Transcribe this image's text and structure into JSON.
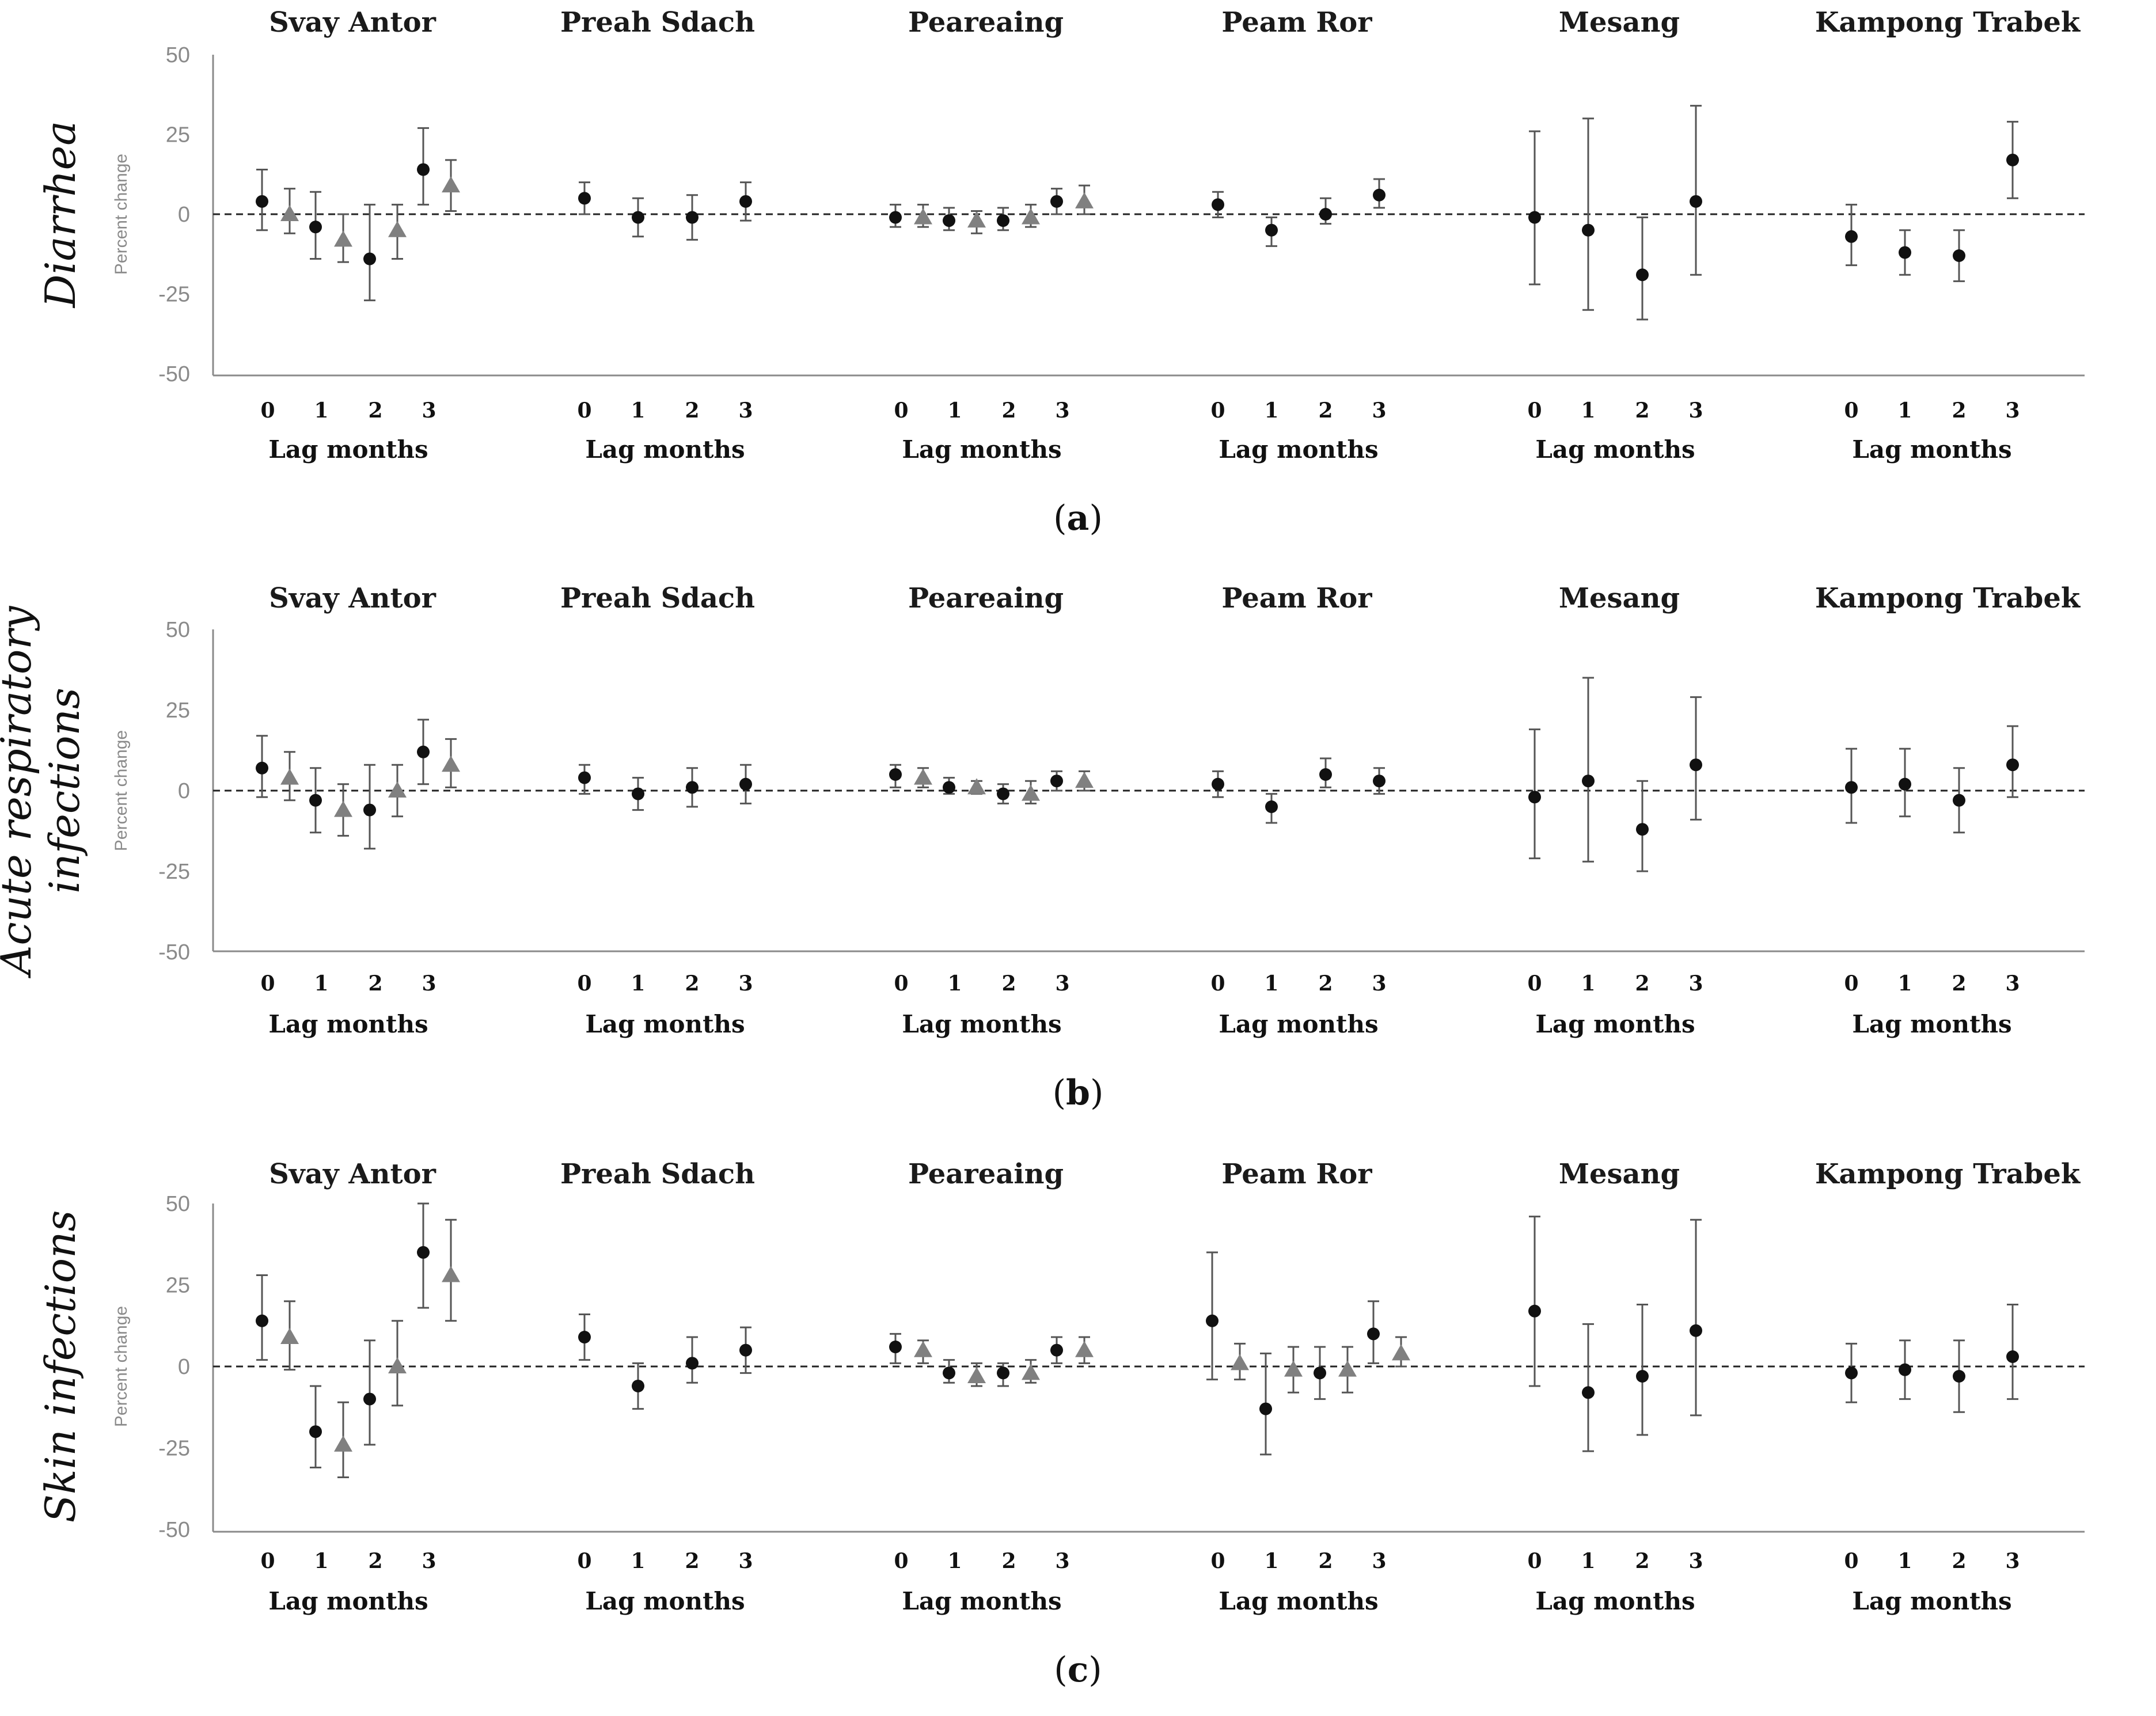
{
  "chart_data": [
    {
      "type": "scatter",
      "panel_label": "a",
      "ylabel": "Diarrhea",
      "ylabel_small": "Percent change",
      "ylim": [
        -50,
        50
      ],
      "yticks": [
        50,
        25,
        0,
        -25,
        -50
      ],
      "xlabel": "Lag months",
      "lags": [
        "0",
        "1",
        "2",
        "3"
      ],
      "sites": [
        {
          "name": "Svay Antor",
          "circle": [
            {
              "lag": 0,
              "v": 4,
              "lo": -5,
              "hi": 14
            },
            {
              "lag": 1,
              "v": -4,
              "lo": -14,
              "hi": 7
            },
            {
              "lag": 2,
              "v": -14,
              "lo": -27,
              "hi": 3
            },
            {
              "lag": 3,
              "v": 14,
              "lo": 3,
              "hi": 27
            }
          ],
          "triangle": [
            {
              "lag": 0,
              "v": 0,
              "lo": -6,
              "hi": 8
            },
            {
              "lag": 1,
              "v": -8,
              "lo": -15,
              "hi": 0
            },
            {
              "lag": 2,
              "v": -5,
              "lo": -14,
              "hi": 3
            },
            {
              "lag": 3,
              "v": 9,
              "lo": 1,
              "hi": 17
            }
          ]
        },
        {
          "name": "Preah Sdach",
          "circle": [
            {
              "lag": 0,
              "v": 5,
              "lo": 0,
              "hi": 10
            },
            {
              "lag": 1,
              "v": -1,
              "lo": -7,
              "hi": 5
            },
            {
              "lag": 2,
              "v": -1,
              "lo": -8,
              "hi": 6
            },
            {
              "lag": 3,
              "v": 4,
              "lo": -2,
              "hi": 10
            }
          ],
          "triangle": []
        },
        {
          "name": "Peareaing",
          "circle": [
            {
              "lag": 0,
              "v": -1,
              "lo": -4,
              "hi": 3
            },
            {
              "lag": 1,
              "v": -2,
              "lo": -5,
              "hi": 2
            },
            {
              "lag": 2,
              "v": -2,
              "lo": -5,
              "hi": 2
            },
            {
              "lag": 3,
              "v": 4,
              "lo": 0,
              "hi": 8
            }
          ],
          "triangle": [
            {
              "lag": 0,
              "v": -1,
              "lo": -4,
              "hi": 3
            },
            {
              "lag": 1,
              "v": -2,
              "lo": -6,
              "hi": 1
            },
            {
              "lag": 2,
              "v": -1,
              "lo": -4,
              "hi": 3
            },
            {
              "lag": 3,
              "v": 4,
              "lo": 0,
              "hi": 9
            }
          ]
        },
        {
          "name": "Peam Ror",
          "circle": [
            {
              "lag": 0,
              "v": 3,
              "lo": -1,
              "hi": 7
            },
            {
              "lag": 1,
              "v": -5,
              "lo": -10,
              "hi": -1
            },
            {
              "lag": 2,
              "v": 0,
              "lo": -3,
              "hi": 5
            },
            {
              "lag": 3,
              "v": 6,
              "lo": 2,
              "hi": 11
            }
          ],
          "triangle": []
        },
        {
          "name": "Mesang",
          "circle": [
            {
              "lag": 0,
              "v": -1,
              "lo": -22,
              "hi": 26
            },
            {
              "lag": 1,
              "v": -5,
              "lo": -30,
              "hi": 30
            },
            {
              "lag": 2,
              "v": -19,
              "lo": -33,
              "hi": -1
            },
            {
              "lag": 3,
              "v": 4,
              "lo": -19,
              "hi": 34
            }
          ],
          "triangle": []
        },
        {
          "name": "Kampong Trabek",
          "circle": [
            {
              "lag": 0,
              "v": -7,
              "lo": -16,
              "hi": 3
            },
            {
              "lag": 1,
              "v": -12,
              "lo": -19,
              "hi": -5
            },
            {
              "lag": 2,
              "v": -13,
              "lo": -21,
              "hi": -5
            },
            {
              "lag": 3,
              "v": 17,
              "lo": 5,
              "hi": 29
            }
          ],
          "triangle": []
        }
      ]
    },
    {
      "type": "scatter",
      "panel_label": "b",
      "ylabel": "Acute respiratory infections",
      "ylabel_lines": [
        "Acute respiratory",
        "infections"
      ],
      "ylabel_small": "Percent change",
      "ylim": [
        -50,
        50
      ],
      "yticks": [
        50,
        25,
        0,
        -25,
        -50
      ],
      "xlabel": "Lag months",
      "lags": [
        "0",
        "1",
        "2",
        "3"
      ],
      "sites": [
        {
          "name": "Svay Antor",
          "circle": [
            {
              "lag": 0,
              "v": 7,
              "lo": -2,
              "hi": 17
            },
            {
              "lag": 1,
              "v": -3,
              "lo": -13,
              "hi": 7
            },
            {
              "lag": 2,
              "v": -6,
              "lo": -18,
              "hi": 8
            },
            {
              "lag": 3,
              "v": 12,
              "lo": 2,
              "hi": 22
            }
          ],
          "triangle": [
            {
              "lag": 0,
              "v": 4,
              "lo": -3,
              "hi": 12
            },
            {
              "lag": 1,
              "v": -6,
              "lo": -14,
              "hi": 2
            },
            {
              "lag": 2,
              "v": 0,
              "lo": -8,
              "hi": 8
            },
            {
              "lag": 3,
              "v": 8,
              "lo": 1,
              "hi": 16
            }
          ]
        },
        {
          "name": "Preah Sdach",
          "circle": [
            {
              "lag": 0,
              "v": 4,
              "lo": -1,
              "hi": 8
            },
            {
              "lag": 1,
              "v": -1,
              "lo": -6,
              "hi": 4
            },
            {
              "lag": 2,
              "v": 1,
              "lo": -5,
              "hi": 7
            },
            {
              "lag": 3,
              "v": 2,
              "lo": -4,
              "hi": 8
            }
          ],
          "triangle": []
        },
        {
          "name": "Peareaing",
          "circle": [
            {
              "lag": 0,
              "v": 5,
              "lo": 1,
              "hi": 8
            },
            {
              "lag": 1,
              "v": 1,
              "lo": -1,
              "hi": 4
            },
            {
              "lag": 2,
              "v": -1,
              "lo": -4,
              "hi": 2
            },
            {
              "lag": 3,
              "v": 3,
              "lo": 0,
              "hi": 6
            }
          ],
          "triangle": [
            {
              "lag": 0,
              "v": 4,
              "lo": 1,
              "hi": 7
            },
            {
              "lag": 1,
              "v": 1,
              "lo": -1,
              "hi": 3
            },
            {
              "lag": 2,
              "v": -1,
              "lo": -4,
              "hi": 3
            },
            {
              "lag": 3,
              "v": 3,
              "lo": 0,
              "hi": 6
            }
          ]
        },
        {
          "name": "Peam Ror",
          "circle": [
            {
              "lag": 0,
              "v": 2,
              "lo": -2,
              "hi": 6
            },
            {
              "lag": 1,
              "v": -5,
              "lo": -10,
              "hi": -1
            },
            {
              "lag": 2,
              "v": 5,
              "lo": 1,
              "hi": 10
            },
            {
              "lag": 3,
              "v": 3,
              "lo": -1,
              "hi": 7
            }
          ],
          "triangle": []
        },
        {
          "name": "Mesang",
          "circle": [
            {
              "lag": 0,
              "v": -2,
              "lo": -21,
              "hi": 19
            },
            {
              "lag": 1,
              "v": 3,
              "lo": -22,
              "hi": 35
            },
            {
              "lag": 2,
              "v": -12,
              "lo": -25,
              "hi": 3
            },
            {
              "lag": 3,
              "v": 8,
              "lo": -9,
              "hi": 29
            }
          ],
          "triangle": []
        },
        {
          "name": "Kampong Trabek",
          "circle": [
            {
              "lag": 0,
              "v": 1,
              "lo": -10,
              "hi": 13
            },
            {
              "lag": 1,
              "v": 2,
              "lo": -8,
              "hi": 13
            },
            {
              "lag": 2,
              "v": -3,
              "lo": -13,
              "hi": 7
            },
            {
              "lag": 3,
              "v": 8,
              "lo": -2,
              "hi": 20
            }
          ],
          "triangle": []
        }
      ]
    },
    {
      "type": "scatter",
      "panel_label": "c",
      "ylabel": "Skin infections",
      "ylabel_small": "Percent change",
      "ylim": [
        -50,
        50
      ],
      "yticks": [
        50,
        25,
        0,
        -25,
        -50
      ],
      "xlabel": "Lag months",
      "lags": [
        "0",
        "1",
        "2",
        "3"
      ],
      "sites": [
        {
          "name": "Svay Antor",
          "circle": [
            {
              "lag": 0,
              "v": 14,
              "lo": 2,
              "hi": 28
            },
            {
              "lag": 1,
              "v": -20,
              "lo": -31,
              "hi": -6
            },
            {
              "lag": 2,
              "v": -10,
              "lo": -24,
              "hi": 8
            },
            {
              "lag": 3,
              "v": 35,
              "lo": 18,
              "hi": 50
            }
          ],
          "triangle": [
            {
              "lag": 0,
              "v": 9,
              "lo": -1,
              "hi": 20
            },
            {
              "lag": 1,
              "v": -24,
              "lo": -34,
              "hi": -11
            },
            {
              "lag": 2,
              "v": 0,
              "lo": -12,
              "hi": 14
            },
            {
              "lag": 3,
              "v": 28,
              "lo": 14,
              "hi": 45
            }
          ]
        },
        {
          "name": "Preah Sdach",
          "circle": [
            {
              "lag": 0,
              "v": 9,
              "lo": 2,
              "hi": 16
            },
            {
              "lag": 1,
              "v": -6,
              "lo": -13,
              "hi": 1
            },
            {
              "lag": 2,
              "v": 1,
              "lo": -5,
              "hi": 9
            },
            {
              "lag": 3,
              "v": 5,
              "lo": -2,
              "hi": 12
            }
          ],
          "triangle": []
        },
        {
          "name": "Peareaing",
          "circle": [
            {
              "lag": 0,
              "v": 6,
              "lo": 1,
              "hi": 10
            },
            {
              "lag": 1,
              "v": -2,
              "lo": -5,
              "hi": 2
            },
            {
              "lag": 2,
              "v": -2,
              "lo": -6,
              "hi": 1
            },
            {
              "lag": 3,
              "v": 5,
              "lo": 1,
              "hi": 9
            }
          ],
          "triangle": [
            {
              "lag": 0,
              "v": 5,
              "lo": 1,
              "hi": 8
            },
            {
              "lag": 1,
              "v": -3,
              "lo": -6,
              "hi": 1
            },
            {
              "lag": 2,
              "v": -2,
              "lo": -5,
              "hi": 2
            },
            {
              "lag": 3,
              "v": 5,
              "lo": 1,
              "hi": 9
            }
          ]
        },
        {
          "name": "Peam Ror",
          "circle": [
            {
              "lag": 0,
              "v": 14,
              "lo": -4,
              "hi": 35
            },
            {
              "lag": 1,
              "v": -13,
              "lo": -27,
              "hi": 4
            },
            {
              "lag": 2,
              "v": -2,
              "lo": -10,
              "hi": 6
            },
            {
              "lag": 3,
              "v": 10,
              "lo": 1,
              "hi": 20
            }
          ],
          "triangle": [
            {
              "lag": 0,
              "v": 1,
              "lo": -4,
              "hi": 7
            },
            {
              "lag": 1,
              "v": -1,
              "lo": -8,
              "hi": 6
            },
            {
              "lag": 2,
              "v": -1,
              "lo": -8,
              "hi": 6
            },
            {
              "lag": 3,
              "v": 4,
              "lo": 0,
              "hi": 9
            }
          ]
        },
        {
          "name": "Mesang",
          "circle": [
            {
              "lag": 0,
              "v": 17,
              "lo": -6,
              "hi": 46
            },
            {
              "lag": 1,
              "v": -8,
              "lo": -26,
              "hi": 13
            },
            {
              "lag": 2,
              "v": -3,
              "lo": -21,
              "hi": 19
            },
            {
              "lag": 3,
              "v": 11,
              "lo": -15,
              "hi": 45
            }
          ],
          "triangle": []
        },
        {
          "name": "Kampong Trabek",
          "circle": [
            {
              "lag": 0,
              "v": -2,
              "lo": -11,
              "hi": 7
            },
            {
              "lag": 1,
              "v": -1,
              "lo": -10,
              "hi": 8
            },
            {
              "lag": 2,
              "v": -3,
              "lo": -14,
              "hi": 8
            },
            {
              "lag": 3,
              "v": 3,
              "lo": -10,
              "hi": 19
            }
          ],
          "triangle": []
        }
      ]
    }
  ],
  "colors": {
    "circle": "#111111",
    "triangle": "#808080",
    "errbar": "#555555",
    "axis": "#8a8a8a"
  }
}
